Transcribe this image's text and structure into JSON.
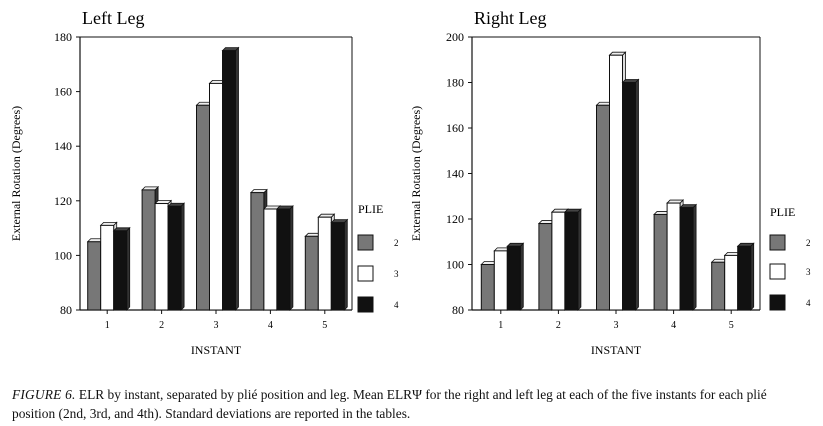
{
  "chart_data": [
    {
      "type": "bar",
      "title": "Left Leg",
      "xlabel": "INSTANT",
      "ylabel": "External Rotation (Degrees)",
      "ylim": [
        80,
        180
      ],
      "yticks": [
        "80",
        "100",
        "120",
        "140",
        "160",
        "180"
      ],
      "categories": [
        "1",
        "2",
        "3",
        "4",
        "5"
      ],
      "legend_title": "PLIE",
      "legend_position": "right",
      "series": [
        {
          "name": "2",
          "color": "#777777",
          "values": [
            105,
            124,
            155,
            123,
            107
          ]
        },
        {
          "name": "3",
          "color": "#ffffff",
          "values": [
            111,
            119,
            163,
            117,
            114
          ]
        },
        {
          "name": "4",
          "color": "#111111",
          "values": [
            109,
            118,
            175,
            117,
            112
          ]
        }
      ]
    },
    {
      "type": "bar",
      "title": "Right Leg",
      "xlabel": "INSTANT",
      "ylabel": "External Rotation (Degrees)",
      "ylim": [
        80,
        200
      ],
      "yticks": [
        "80",
        "100",
        "120",
        "140",
        "160",
        "180",
        "200"
      ],
      "categories": [
        "1",
        "2",
        "3",
        "4",
        "5"
      ],
      "legend_title": "PLIE",
      "legend_position": "right",
      "series": [
        {
          "name": "2",
          "color": "#777777",
          "values": [
            100,
            118,
            170,
            122,
            101
          ]
        },
        {
          "name": "3",
          "color": "#ffffff",
          "values": [
            106,
            123,
            192,
            127,
            104
          ]
        },
        {
          "name": "4",
          "color": "#111111",
          "values": [
            108,
            123,
            180,
            125,
            108
          ]
        }
      ]
    }
  ],
  "caption": {
    "lead": "FIGURE 6.",
    "text": "ELR by instant, separated by plié position and leg. Mean ELRΨ for the right and left leg at each of the five instants for each plié position (2nd, 3rd, and 4th). Standard deviations are reported in the tables."
  }
}
